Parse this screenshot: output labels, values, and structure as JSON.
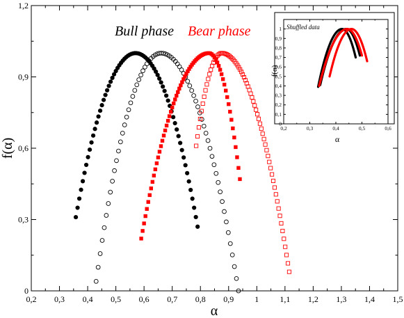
{
  "chart_data": [
    {
      "type": "scatter",
      "title": "",
      "xlabel": "α",
      "ylabel": "f(α)",
      "xlim": [
        0.2,
        1.5
      ],
      "ylim": [
        0,
        1.2
      ],
      "xticks": [
        "0,2",
        "0,3",
        "0,4",
        "0,5",
        "0,6",
        "0,7",
        "0,8",
        "0,9",
        "1",
        "1,1",
        "1,2",
        "1,3",
        "1,4",
        "1,5"
      ],
      "yticks": [
        "0",
        "0,3",
        "0,6",
        "0,9",
        "1,2"
      ],
      "annotations": [
        {
          "text": "Bull phase",
          "color": "#000000"
        },
        {
          "text": "Bear phase",
          "color": "#ff0000"
        }
      ],
      "series": [
        {
          "marker": "filled-circle",
          "color": "#000000",
          "alpha_min": 0.358,
          "alpha_peak": 0.57,
          "alpha_max": 0.79,
          "f_left": 0.31,
          "f_right": 0.27,
          "f_peak": 1.0
        },
        {
          "marker": "open-circle",
          "color": "#000000",
          "alpha_min": 0.43,
          "alpha_peak": 0.66,
          "alpha_max": 0.935,
          "f_left": 0.04,
          "f_right": 0.0,
          "f_peak": 1.0
        },
        {
          "marker": "filled-square",
          "color": "#ff0000",
          "alpha_min": 0.59,
          "alpha_peak": 0.83,
          "alpha_max": 0.94,
          "f_left": 0.22,
          "f_right": 0.47,
          "f_peak": 1.0
        },
        {
          "marker": "open-square",
          "color": "#ff0000",
          "alpha_min": 0.785,
          "alpha_peak": 0.875,
          "alpha_max": 1.115,
          "f_left": 0.61,
          "f_right": 0.08,
          "f_peak": 1.0
        }
      ]
    },
    {
      "type": "line",
      "title": "Shuffled data",
      "xlabel": "α",
      "ylabel": "f(α)",
      "xlim": [
        0.2,
        0.7
      ],
      "ylim": [
        0,
        1.1
      ],
      "xticks": [
        "0,2",
        "0,3",
        "0,4",
        "0,5",
        "0,6"
      ],
      "yticks": [
        "0",
        "0,1",
        "0,2",
        "0,3",
        "0,4",
        "0,5",
        "0,6",
        "0,7",
        "0,8",
        "0,9",
        "1"
      ],
      "series": [
        {
          "color": "#000000",
          "alpha_min": 0.365,
          "alpha_peak": 0.48,
          "alpha_max": 0.545,
          "f_left": 0.39,
          "f_right": 0.7,
          "f_peak": 1.0
        },
        {
          "color": "#000000",
          "alpha_min": 0.375,
          "alpha_peak": 0.5,
          "alpha_max": 0.565,
          "f_left": 0.41,
          "f_right": 0.72,
          "f_peak": 1.0
        },
        {
          "color": "#ff0000",
          "alpha_min": 0.37,
          "alpha_peak": 0.505,
          "alpha_max": 0.575,
          "f_left": 0.4,
          "f_right": 0.72,
          "f_peak": 1.0
        },
        {
          "color": "#ff0000",
          "alpha_min": 0.42,
          "alpha_peak": 0.525,
          "alpha_max": 0.6,
          "f_left": 0.5,
          "f_right": 0.66,
          "f_peak": 1.0
        }
      ]
    }
  ]
}
